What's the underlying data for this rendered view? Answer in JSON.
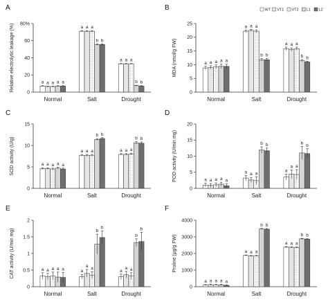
{
  "legend": {
    "entries": [
      {
        "name": "WT",
        "fill": "#ffffff",
        "pattern": "none"
      },
      {
        "name": "VT1",
        "fill": "#ffffff",
        "pattern": "lines"
      },
      {
        "name": "VT2",
        "fill": "#ffffff",
        "pattern": "dots"
      },
      {
        "name": "L1",
        "fill": "#d6d6d6",
        "pattern": "none"
      },
      {
        "name": "L2",
        "fill": "#6e6e6e",
        "pattern": "none"
      }
    ]
  },
  "chart_data": [
    {
      "letter": "A",
      "type": "bar",
      "categories": [
        "Normal",
        "Salt",
        "Drought"
      ],
      "ylabel": "Relative electrolytic leakage (%)",
      "ylim": [
        0,
        80
      ],
      "yticks": [
        0,
        20,
        40,
        60,
        80
      ],
      "tick_labels": [
        "0",
        "20",
        "40",
        "60",
        "80%"
      ],
      "series": [
        {
          "name": "WT",
          "values": [
            7,
            71,
            33
          ],
          "errors": [
            0.5,
            0.8,
            0.5
          ],
          "sig": [
            "a",
            "a",
            "a"
          ]
        },
        {
          "name": "VT1",
          "values": [
            6.5,
            71,
            33
          ],
          "errors": [
            0.5,
            0.8,
            0.5
          ],
          "sig": [
            "a",
            "a",
            "a"
          ]
        },
        {
          "name": "VT2",
          "values": [
            6.5,
            71,
            33
          ],
          "errors": [
            0.5,
            0.8,
            0.5
          ],
          "sig": [
            "a",
            "a",
            "a"
          ]
        },
        {
          "name": "L1",
          "values": [
            7,
            55.5,
            7.5
          ],
          "errors": [
            0.5,
            0.8,
            0.5
          ],
          "sig": [
            "a",
            "b",
            "b"
          ]
        },
        {
          "name": "L2",
          "values": [
            7,
            55.5,
            7
          ],
          "errors": [
            0.5,
            0.8,
            0.5
          ],
          "sig": [
            "a",
            "b",
            "b"
          ]
        }
      ]
    },
    {
      "letter": "B",
      "type": "bar",
      "categories": [
        "Normal",
        "Salt",
        "Drought"
      ],
      "ylabel": "MDA (nmol/g FW)",
      "ylim": [
        0,
        25
      ],
      "yticks": [
        0,
        5,
        10,
        15,
        20,
        25
      ],
      "tick_labels": [
        "0",
        "5",
        "10",
        "15",
        "20",
        "25"
      ],
      "series": [
        {
          "name": "WT",
          "values": [
            8.8,
            22.2,
            15.8
          ],
          "errors": [
            0.6,
            0.4,
            0.6
          ],
          "sig": [
            "a",
            "a",
            "a"
          ]
        },
        {
          "name": "VT1",
          "values": [
            9.0,
            22.5,
            15.5
          ],
          "errors": [
            0.6,
            0.4,
            0.6
          ],
          "sig": [
            "a",
            "a",
            "a"
          ]
        },
        {
          "name": "VT2",
          "values": [
            9.2,
            22.2,
            15.8
          ],
          "errors": [
            0.7,
            0.5,
            0.6
          ],
          "sig": [
            "a",
            "a",
            "a"
          ]
        },
        {
          "name": "L1",
          "values": [
            9.4,
            11.8,
            11.5
          ],
          "errors": [
            0.8,
            0.4,
            0.4
          ],
          "sig": [
            "a",
            "b",
            "b"
          ]
        },
        {
          "name": "L2",
          "values": [
            9.4,
            11.8,
            11.0
          ],
          "errors": [
            0.8,
            0.4,
            0.3
          ],
          "sig": [
            "a",
            "b",
            "b"
          ]
        }
      ]
    },
    {
      "letter": "C",
      "type": "bar",
      "categories": [
        "Normal",
        "Salt",
        "Drought"
      ],
      "ylabel": "SOD activity (U/g)",
      "ylim": [
        0,
        15
      ],
      "yticks": [
        0,
        5,
        10,
        15
      ],
      "tick_labels": [
        "0",
        "5",
        "10",
        "15"
      ],
      "series": [
        {
          "name": "WT",
          "values": [
            4.6,
            7.7,
            7.9
          ],
          "errors": [
            0.2,
            0.2,
            0.2
          ],
          "sig": [
            "a",
            "a",
            "a"
          ]
        },
        {
          "name": "VT1",
          "values": [
            4.6,
            7.7,
            7.9
          ],
          "errors": [
            0.2,
            0.2,
            0.2
          ],
          "sig": [
            "a",
            "a",
            "a"
          ]
        },
        {
          "name": "VT2",
          "values": [
            4.5,
            7.7,
            8.0
          ],
          "errors": [
            0.2,
            0.2,
            0.2
          ],
          "sig": [
            "a",
            "a",
            "a"
          ]
        },
        {
          "name": "L1",
          "values": [
            4.7,
            11.4,
            10.6
          ],
          "errors": [
            0.2,
            0.2,
            0.3
          ],
          "sig": [
            "a",
            "b",
            "b"
          ]
        },
        {
          "name": "L2",
          "values": [
            4.5,
            11.6,
            10.5
          ],
          "errors": [
            0.2,
            0.2,
            0.3
          ],
          "sig": [
            "a",
            "b",
            "b"
          ]
        }
      ]
    },
    {
      "letter": "D",
      "type": "bar",
      "categories": [
        "Normal",
        "Salt",
        "Drought"
      ],
      "ylabel": "POD activity (U/min mg)",
      "ylim": [
        0,
        20
      ],
      "yticks": [
        0,
        5,
        10,
        15,
        20
      ],
      "tick_labels": [
        "0",
        "5",
        "10",
        "15",
        "20"
      ],
      "series": [
        {
          "name": "WT",
          "values": [
            1.0,
            3.2,
            3.5
          ],
          "errors": [
            0.6,
            0.8,
            0.9
          ],
          "sig": [
            "a",
            "a",
            "a"
          ]
        },
        {
          "name": "VT1",
          "values": [
            0.9,
            2.6,
            4.4
          ],
          "errors": [
            0.6,
            0.8,
            1.3
          ],
          "sig": [
            "a",
            "a",
            "a"
          ]
        },
        {
          "name": "VT2",
          "values": [
            1.1,
            2.4,
            4.3
          ],
          "errors": [
            0.6,
            1.2,
            1.5
          ],
          "sig": [
            "a",
            "a",
            "a"
          ]
        },
        {
          "name": "L1",
          "values": [
            1.3,
            11.9,
            11.0
          ],
          "errors": [
            0.6,
            1.0,
            2.0
          ],
          "sig": [
            "a",
            "b",
            "b"
          ]
        },
        {
          "name": "L2",
          "values": [
            0.8,
            11.7,
            10.8
          ],
          "errors": [
            0.6,
            0.8,
            1.5
          ],
          "sig": [
            "a",
            "b",
            "b"
          ]
        }
      ]
    },
    {
      "letter": "E",
      "type": "bar",
      "categories": [
        "Normal",
        "Salt",
        "Drought"
      ],
      "ylabel": "CAT activity (U/min mg)",
      "ylim": [
        0,
        2
      ],
      "yticks": [
        0,
        0.5,
        1,
        1.5,
        2
      ],
      "tick_labels": [
        "0",
        "0.5",
        "1",
        "1.5",
        "2"
      ],
      "series": [
        {
          "name": "WT",
          "values": [
            0.32,
            0.3,
            0.3
          ],
          "errors": [
            0.1,
            0.07,
            0.08
          ],
          "sig": [
            "a",
            "a",
            "a"
          ]
        },
        {
          "name": "VT1",
          "values": [
            0.3,
            0.4,
            0.36
          ],
          "errors": [
            0.1,
            0.12,
            0.1
          ],
          "sig": [
            "a",
            "a",
            "a"
          ]
        },
        {
          "name": "VT2",
          "values": [
            0.32,
            0.35,
            0.32
          ],
          "errors": [
            0.12,
            0.1,
            0.1
          ],
          "sig": [
            "a",
            "a",
            "a"
          ]
        },
        {
          "name": "L1",
          "values": [
            0.29,
            1.28,
            1.32
          ],
          "errors": [
            0.15,
            0.3,
            0.12
          ],
          "sig": [
            "a",
            "b",
            "b"
          ]
        },
        {
          "name": "L2",
          "values": [
            0.28,
            1.48,
            1.36
          ],
          "errors": [
            0.15,
            0.2,
            0.28
          ],
          "sig": [
            "a",
            "b",
            "b"
          ]
        }
      ]
    },
    {
      "letter": "F",
      "type": "bar",
      "categories": [
        "Normal",
        "Salt",
        "Drought"
      ],
      "ylabel": "Proline (μg/g FW)",
      "ylim": [
        0,
        4000
      ],
      "yticks": [
        0,
        1000,
        2000,
        3000,
        4000
      ],
      "tick_labels": [
        "0",
        "1000",
        "2000",
        "3000",
        "4000"
      ],
      "series": [
        {
          "name": "WT",
          "values": [
            100,
            1880,
            2380
          ],
          "errors": [
            30,
            30,
            30
          ],
          "sig": [
            "a",
            "a",
            "a"
          ]
        },
        {
          "name": "VT1",
          "values": [
            120,
            1850,
            2370
          ],
          "errors": [
            30,
            30,
            30
          ],
          "sig": [
            "a",
            "a",
            "a"
          ]
        },
        {
          "name": "VT2",
          "values": [
            110,
            1860,
            2360
          ],
          "errors": [
            30,
            30,
            30
          ],
          "sig": [
            "a",
            "a",
            "a"
          ]
        },
        {
          "name": "L1",
          "values": [
            110,
            3470,
            2880
          ],
          "errors": [
            30,
            40,
            30
          ],
          "sig": [
            "a",
            "b",
            "b"
          ]
        },
        {
          "name": "L2",
          "values": [
            80,
            3460,
            2860
          ],
          "errors": [
            30,
            40,
            30
          ],
          "sig": [
            "a",
            "b",
            "b"
          ]
        }
      ]
    }
  ]
}
